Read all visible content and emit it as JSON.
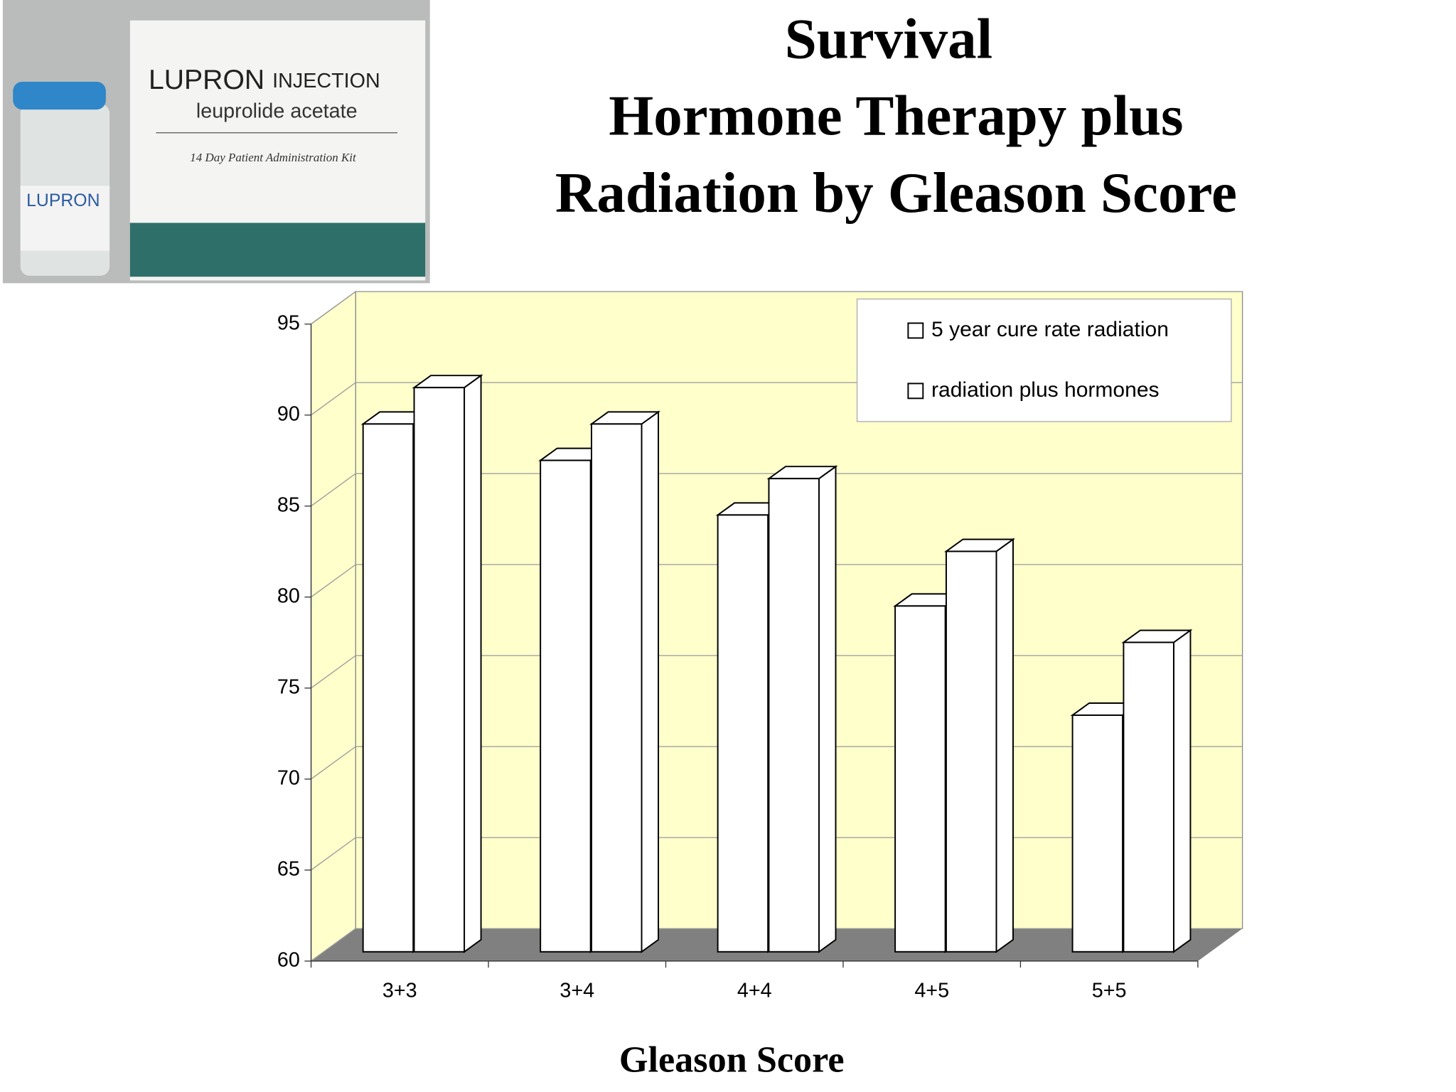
{
  "photo": {
    "brand": "LUPRON",
    "form": "INJECTION",
    "generic": "leuprolide acetate",
    "kit": "14 Day Patient Administration Kit",
    "vial_brand": "LUPRON"
  },
  "chart_data": {
    "type": "bar3d",
    "title": [
      "Survival",
      "Hormone Therapy plus",
      "Radiation by Gleason Score"
    ],
    "x_label": "Gleason Score",
    "categories": [
      "3+3",
      "3+4",
      "4+4",
      "4+5",
      "5+5"
    ],
    "series": [
      {
        "name": "5 year cure rate radiation",
        "color": "#ffffff",
        "values": [
          89,
          87,
          84,
          79,
          73
        ]
      },
      {
        "name": "radiation plus hormones",
        "color": "#ffffff",
        "values": [
          91,
          89,
          86,
          82,
          77
        ]
      }
    ],
    "ylim": [
      60,
      95
    ],
    "yticks": [
      60,
      65,
      70,
      75,
      80,
      85,
      90,
      95
    ],
    "grid": true,
    "wall_color": "#ffffcc",
    "floor_color": "#808080",
    "legend": "top-right"
  }
}
